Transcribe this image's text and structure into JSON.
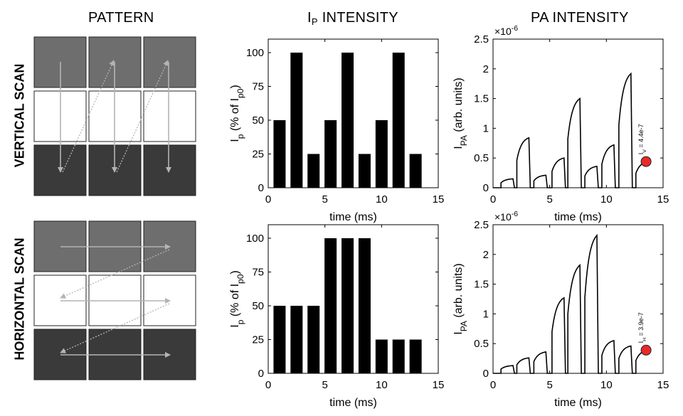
{
  "headers": {
    "pattern": "PATTERN",
    "ip_intensity": {
      "main": "I",
      "sub": "P",
      "rest": " INTENSITY"
    },
    "pa_intensity": "PA INTENSITY"
  },
  "row_labels": {
    "vertical": "VERTICAL SCAN",
    "horizontal": "HORIZONTAL SCAN"
  },
  "colors": {
    "row1": "#6e6e6e",
    "row2": "#ffffff",
    "row3": "#3a3a3a",
    "arrow": "#b4b4b4",
    "bar": "#000000",
    "marker": "#e82a2a"
  },
  "axis_labels": {
    "time": "time (ms)",
    "ip_y": {
      "a": "I",
      "a_sub": "p",
      "b": " (% of I",
      "b_sub": "p0",
      "c": ")"
    },
    "pa_y": {
      "a": "I",
      "a_sub": "PA",
      "b": " (arb. units)"
    },
    "exponent": {
      "base": "×10",
      "power": "-6"
    }
  },
  "annotations": {
    "vertical": {
      "prefix": "I",
      "sub": "V",
      "text": " = 4.4e-7"
    },
    "horizontal": {
      "prefix": "I",
      "sub": "H",
      "text": " = 3.9e-7"
    }
  },
  "chart_data": [
    {
      "id": "ip-vertical",
      "type": "bar",
      "x": [
        1,
        2.5,
        4,
        5.5,
        7,
        8.5,
        10,
        11.5,
        13
      ],
      "values": [
        50,
        100,
        25,
        50,
        100,
        25,
        50,
        100,
        25
      ],
      "xlim": [
        0,
        15
      ],
      "ylim": [
        0,
        110
      ],
      "xticks": [
        0,
        5,
        10,
        15
      ],
      "yticks": [
        0,
        25,
        50,
        75,
        100
      ]
    },
    {
      "id": "pa-vertical",
      "type": "line",
      "xlim": [
        0,
        15
      ],
      "ylim": [
        0,
        2.5
      ],
      "xticks": [
        0,
        5,
        10,
        15
      ],
      "yticks": [
        0,
        0.5,
        1,
        1.5,
        2,
        2.5
      ],
      "peaks": [
        0.15,
        0.84,
        0.21,
        0.5,
        1.5,
        0.36,
        0.72,
        1.92,
        0.44
      ],
      "marker": {
        "x": 13.5,
        "y": 0.44
      }
    },
    {
      "id": "ip-horizontal",
      "type": "bar",
      "x": [
        1,
        2.5,
        4,
        5.5,
        7,
        8.5,
        10,
        11.5,
        13
      ],
      "values": [
        50,
        50,
        50,
        100,
        100,
        100,
        25,
        25,
        25
      ],
      "xlim": [
        0,
        15
      ],
      "ylim": [
        0,
        110
      ],
      "xticks": [
        0,
        5,
        10,
        15
      ],
      "yticks": [
        0,
        25,
        50,
        75,
        100
      ]
    },
    {
      "id": "pa-horizontal",
      "type": "line",
      "xlim": [
        0,
        15
      ],
      "ylim": [
        0,
        2.5
      ],
      "xticks": [
        0,
        5,
        10,
        15
      ],
      "yticks": [
        0,
        0.5,
        1,
        1.5,
        2,
        2.5
      ],
      "peaks": [
        0.13,
        0.26,
        0.36,
        1.27,
        1.82,
        2.32,
        0.55,
        0.46,
        0.39
      ],
      "marker": {
        "x": 13.5,
        "y": 0.39
      }
    }
  ]
}
